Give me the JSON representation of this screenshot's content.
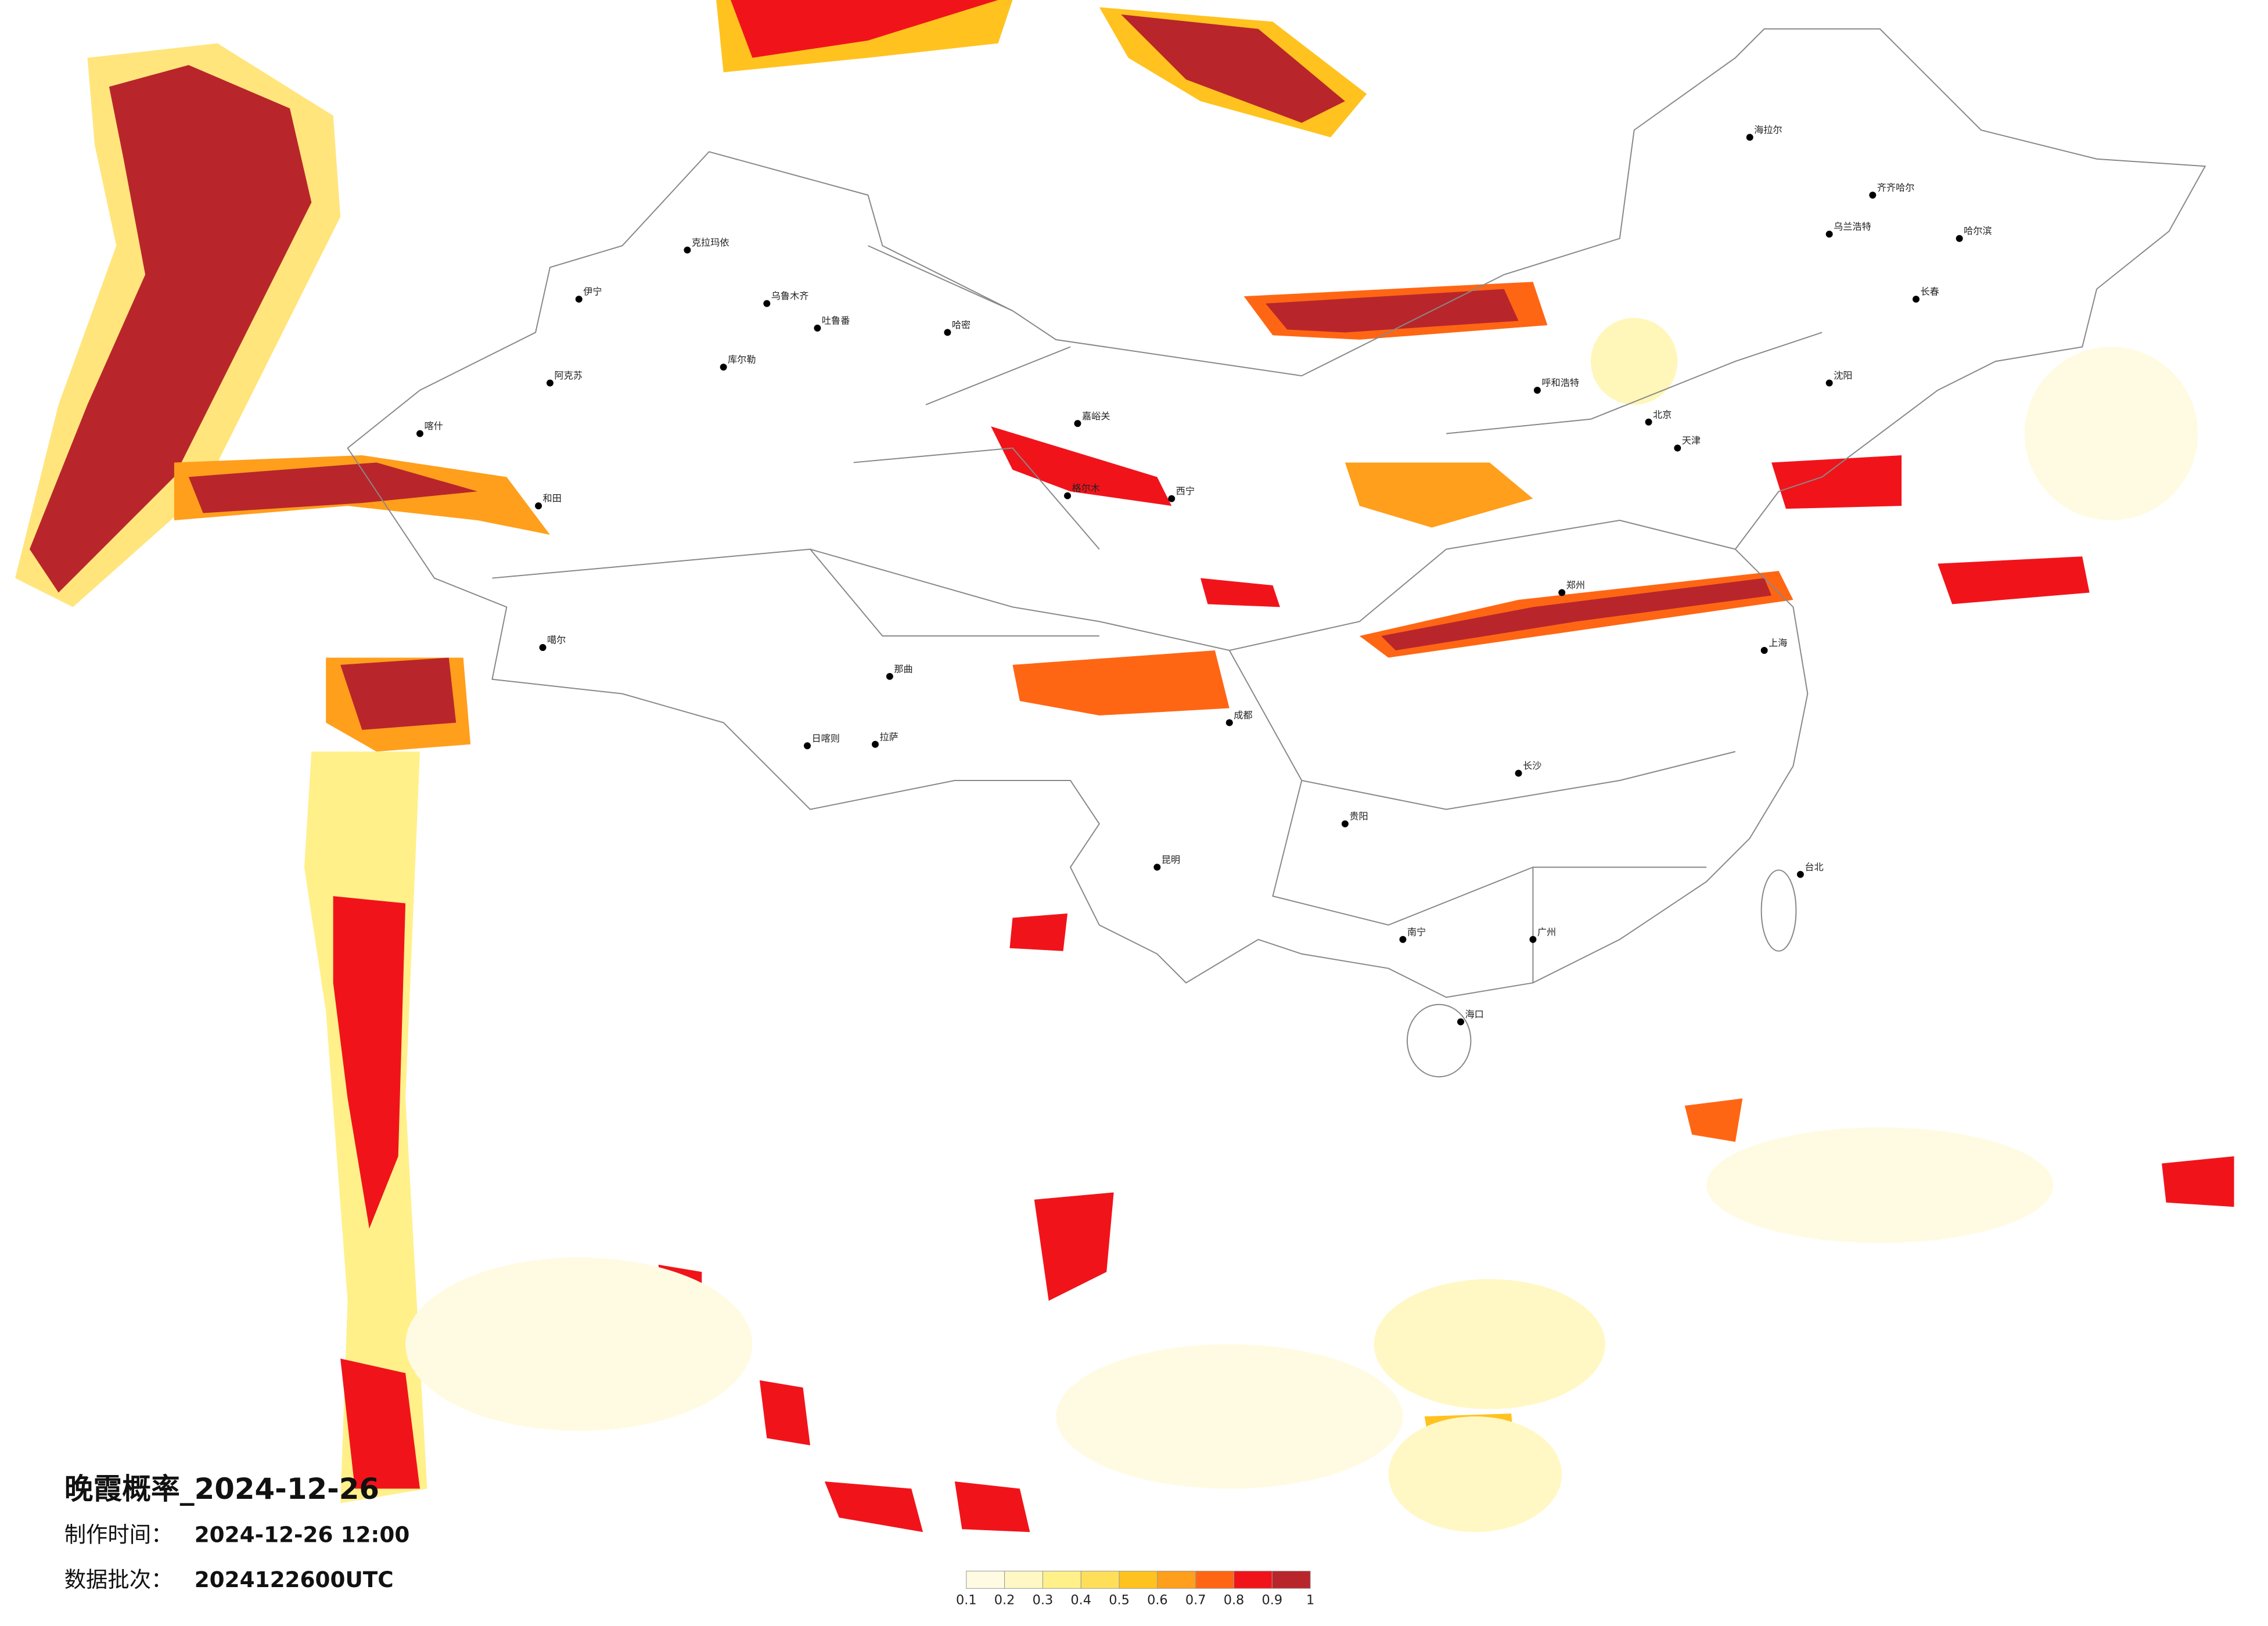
{
  "title": "晚霞概率_2024-12-26",
  "made_label": "制作时间：",
  "made_time": "2024-12-26 12:00",
  "batch_label": "数据批次：",
  "batch": "2024122600UTC",
  "legend": {
    "colors": [
      "#fffbe3",
      "#fff8c4",
      "#fff08a",
      "#ffdf5a",
      "#ffc21f",
      "#ff9f1c",
      "#ff6614",
      "#f0141a",
      "#b8262b"
    ],
    "ticks": [
      0.1,
      0.2,
      0.3,
      0.4,
      0.5,
      0.6,
      0.7,
      0.8,
      0.9,
      1
    ]
  },
  "cities": [
    "克拉玛依",
    "乌鲁木齐",
    "吐鲁番",
    "哈密",
    "伊宁",
    "库尔勒",
    "阿克苏",
    "喀什",
    "和田",
    "噶尔",
    "日喀则",
    "拉萨",
    "那曲",
    "格尔木",
    "嘉峪关",
    "呼和浩特",
    "北京",
    "天津",
    "哈尔滨",
    "长春",
    "沈阳",
    "齐齐哈尔",
    "海拉尔",
    "乌兰浩特",
    "成都",
    "昆明",
    "贵阳",
    "南宁",
    "广州",
    "海口",
    "台北",
    "上海",
    "长沙",
    "西宁",
    "郑州"
  ]
}
